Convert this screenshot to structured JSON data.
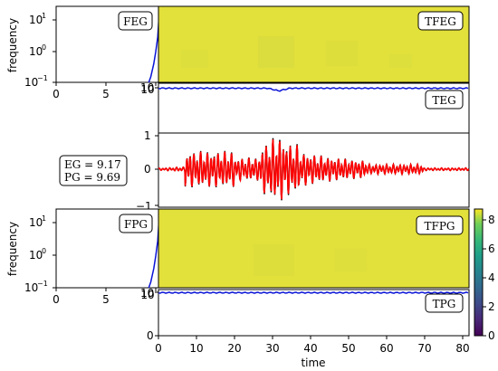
{
  "chart_data": [
    {
      "name": "FEG",
      "type": "line",
      "ylabel": "frequency",
      "yscale": "log",
      "ylim": [
        0.1,
        30
      ],
      "xlim": [
        0,
        10
      ],
      "xticks": [
        "0",
        "5",
        "10"
      ],
      "yticks": [
        "10⁻¹",
        "10⁰",
        "10¹"
      ],
      "label": "FEG",
      "series": [
        {
          "color": "#0a14d6",
          "points": [
            [
              9.3,
              0.1
            ],
            [
              9.5,
              0.15
            ],
            [
              9.8,
              0.4
            ],
            [
              10.0,
              1.0
            ],
            [
              10.2,
              3.0
            ],
            [
              10.3,
              10
            ],
            [
              10.4,
              30
            ]
          ]
        }
      ]
    },
    {
      "name": "TFEG",
      "type": "heatmap",
      "label": "TFEG",
      "dominant_value": 9.4,
      "yscale": "log",
      "ylim": [
        0.1,
        30
      ],
      "xlim": [
        0,
        82
      ]
    },
    {
      "name": "TEG",
      "type": "line",
      "label": "TEG",
      "yticks": [
        "10"
      ],
      "xlim": [
        0,
        82
      ],
      "series": [
        {
          "color": "#0a14d6",
          "description_level": 10
        }
      ]
    },
    {
      "name": "signal",
      "type": "line",
      "xlim": [
        0,
        82
      ],
      "ylim": [
        -1.2,
        1.2
      ],
      "yticks": [
        "-1",
        "0",
        "1"
      ],
      "annotation": [
        "EG = 9.17",
        "PG = 9.69"
      ],
      "series": [
        {
          "color": "#000000"
        },
        {
          "color": "#ff0000"
        }
      ]
    },
    {
      "name": "FPG",
      "type": "line",
      "ylabel": "frequency",
      "yscale": "log",
      "ylim": [
        0.1,
        30
      ],
      "xlim": [
        0,
        10
      ],
      "xticks": [
        "0",
        "5",
        "10"
      ],
      "yticks": [
        "10⁻¹",
        "10⁰",
        "10¹"
      ],
      "label": "FPG",
      "series": [
        {
          "color": "#0a14d6",
          "points": [
            [
              9.3,
              0.1
            ],
            [
              9.5,
              0.15
            ],
            [
              9.8,
              0.4
            ],
            [
              10.0,
              1.0
            ],
            [
              10.2,
              3.0
            ],
            [
              10.3,
              10
            ],
            [
              10.4,
              30
            ]
          ]
        }
      ]
    },
    {
      "name": "TFPG",
      "type": "heatmap",
      "label": "TFPG",
      "dominant_value": 9.4,
      "yscale": "log",
      "ylim": [
        0.1,
        30
      ],
      "xlim": [
        0,
        82
      ]
    },
    {
      "name": "TPG",
      "type": "line",
      "label": "TPG",
      "xlabel": "time",
      "yticks": [
        "0",
        "10"
      ],
      "xticks": [
        "0",
        "10",
        "20",
        "30",
        "40",
        "50",
        "60",
        "70",
        "80"
      ],
      "xlim": [
        0,
        82
      ],
      "series": [
        {
          "color": "#0a14d6",
          "description_level": 10
        }
      ]
    },
    {
      "name": "colorbar",
      "type": "heatmap",
      "colormap": "viridis",
      "range": [
        0,
        9.8
      ],
      "ticks": [
        "0",
        "2",
        "4",
        "6",
        "8"
      ]
    }
  ],
  "labels": {
    "freq_top": "frequency",
    "freq_bot": "frequency",
    "time": "time",
    "feg": "FEG",
    "tfeg": "TFEG",
    "teg": "TEG",
    "fpg": "FPG",
    "tfpg": "TFPG",
    "tpg": "TPG",
    "eg": "EG = 9.17",
    "pg": "PG = 9.69"
  },
  "ticks": {
    "log": [
      "10",
      "10",
      "10"
    ],
    "log_exp": [
      "1",
      "0",
      "−1"
    ],
    "left_x": [
      "0",
      "5",
      "10"
    ],
    "sig_y": [
      "1",
      "0",
      "−1"
    ],
    "time_x": [
      "0",
      "10",
      "20",
      "30",
      "40",
      "50",
      "60",
      "70",
      "80"
    ],
    "tpg_y": [
      "10",
      "0"
    ],
    "teg_y": [
      "10"
    ],
    "cbar": [
      "8",
      "6",
      "4",
      "2",
      "0"
    ]
  },
  "colors": {
    "heat": "#e2e03a",
    "blue": "#0a14d6",
    "red": "#ff0000",
    "black": "#000000"
  }
}
